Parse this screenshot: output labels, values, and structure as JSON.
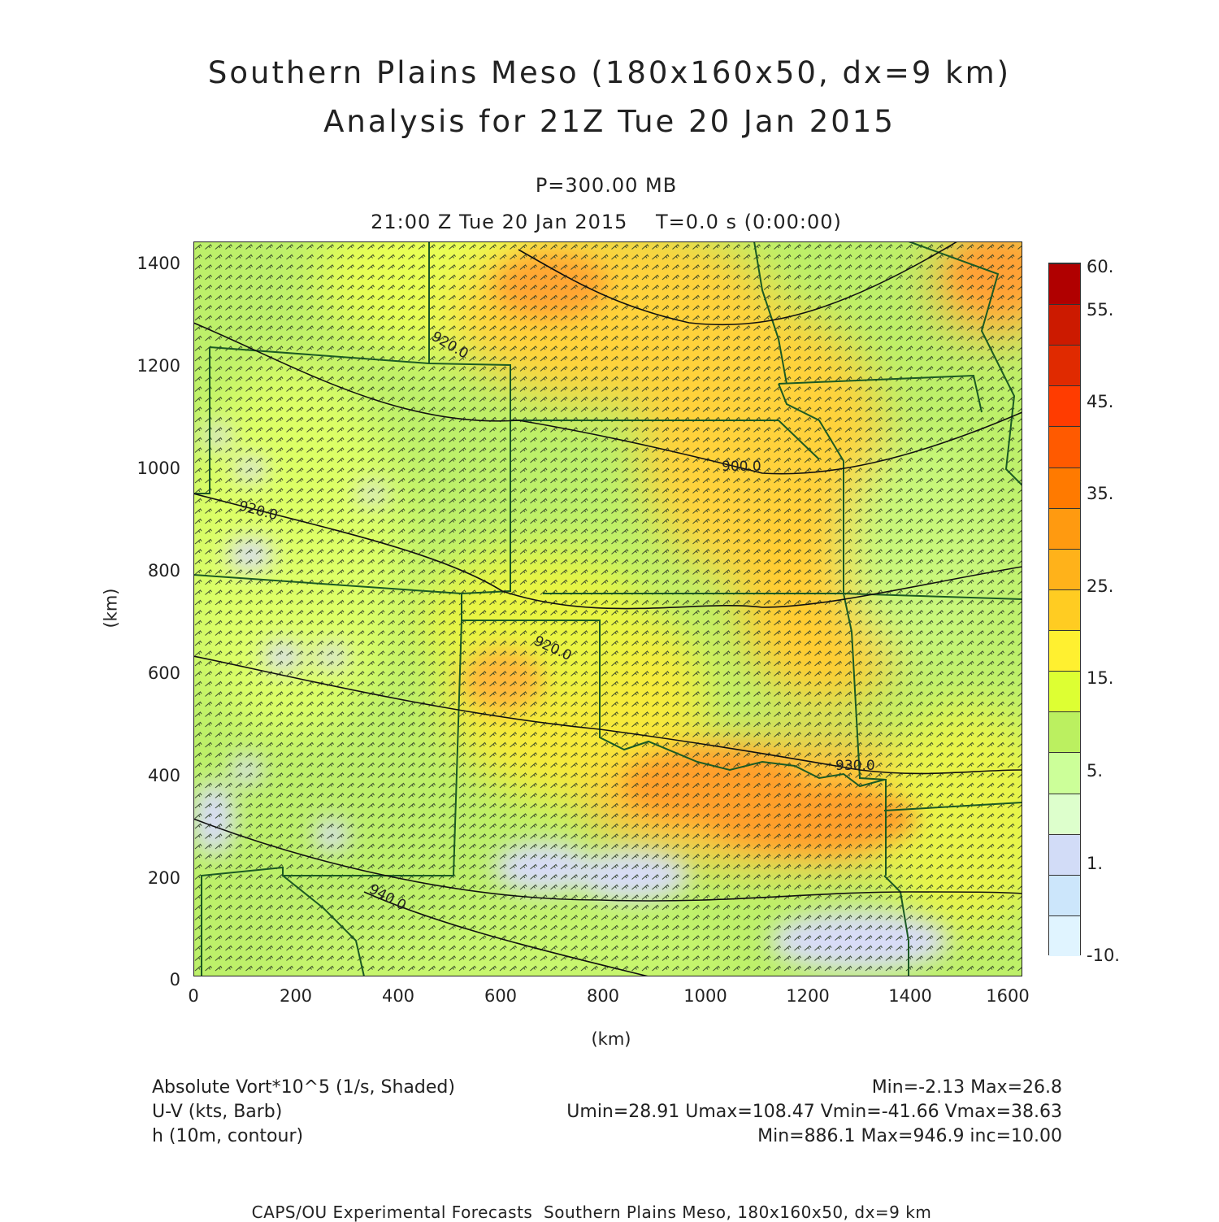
{
  "title": {
    "line1": "Southern Plains Meso (180x160x50, dx=9 km)",
    "line2": "Analysis for 21Z Tue 20 Jan 2015"
  },
  "subtitle": {
    "level": "P=300.00 MB",
    "time": "21:00 Z Tue 20 Jan 2015    T=0.0 s (0:00:00)"
  },
  "axes": {
    "x_label": "(km)",
    "y_label": "(km)",
    "x_ticks": [
      "0",
      "200",
      "400",
      "600",
      "800",
      "1000",
      "1200",
      "1400",
      "1600"
    ],
    "y_ticks": [
      "0",
      "200",
      "400",
      "600",
      "800",
      "1000",
      "1200",
      "1400"
    ],
    "x_range": [
      0,
      1620
    ],
    "y_range": [
      0,
      1440
    ]
  },
  "colorbar": {
    "labels": [
      "60.",
      "55.",
      "45.",
      "35.",
      "25.",
      "15.",
      "5.",
      "1.",
      "-10."
    ],
    "colors": [
      "#b00000",
      "#cc1a00",
      "#e02a00",
      "#ff3c00",
      "#ff5a00",
      "#ff7a00",
      "#ff9a10",
      "#ffb21a",
      "#ffcc22",
      "#fff030",
      "#ddff33",
      "#bbf060",
      "#ccff99",
      "#ddffcc",
      "#d2dcf7",
      "#cce6fb",
      "#e0f4ff"
    ]
  },
  "legend": {
    "field1": "Absolute Vort*10^5 (1/s, Shaded)",
    "field1_stats": "Min=-2.13 Max=26.8",
    "field2": "U-V (kts, Barb)",
    "field2_stats": "Umin=28.91 Umax=108.47 Vmin=-41.66 Vmax=38.63",
    "field3": "h (10m, contour)",
    "field3_stats": "Min=886.1 Max=946.9 inc=10.00"
  },
  "contour_labels": [
    "920.0",
    "920.0",
    "900.0",
    "920.0",
    "930.0",
    "940.0"
  ],
  "footer": "CAPS/OU Experimental Forecasts  Southern Plains Meso, 180x160x50, dx=9 km"
}
